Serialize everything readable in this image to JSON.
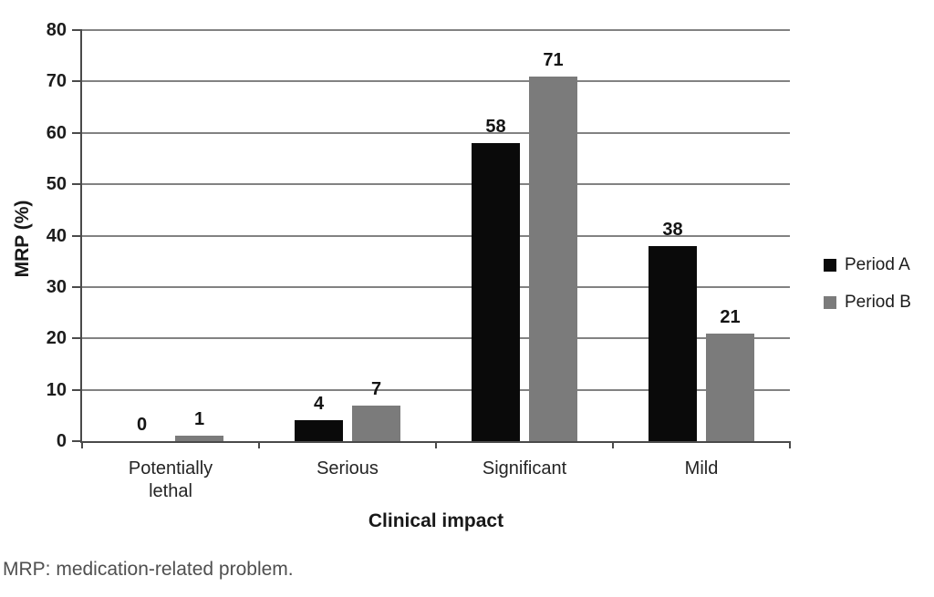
{
  "figure": {
    "footnote": "MRP: medication-related problem."
  },
  "chart_data": {
    "type": "bar",
    "title": "",
    "xlabel": "Clinical impact",
    "ylabel": "MRP (%)",
    "categories": [
      "Potentially\nlethal",
      "Serious",
      "Significant",
      "Mild"
    ],
    "series": [
      {
        "name": "Period A",
        "color": "#0a0a0a",
        "values": [
          0,
          4,
          58,
          38
        ]
      },
      {
        "name": "Period B",
        "color": "#7b7b7b",
        "values": [
          1,
          7,
          71,
          21
        ]
      }
    ],
    "ylim": [
      0,
      80
    ],
    "yticks": [
      0,
      10,
      20,
      30,
      40,
      50,
      60,
      70,
      80
    ],
    "grid": true,
    "legend_position": "right",
    "bar_value_labels": true
  }
}
